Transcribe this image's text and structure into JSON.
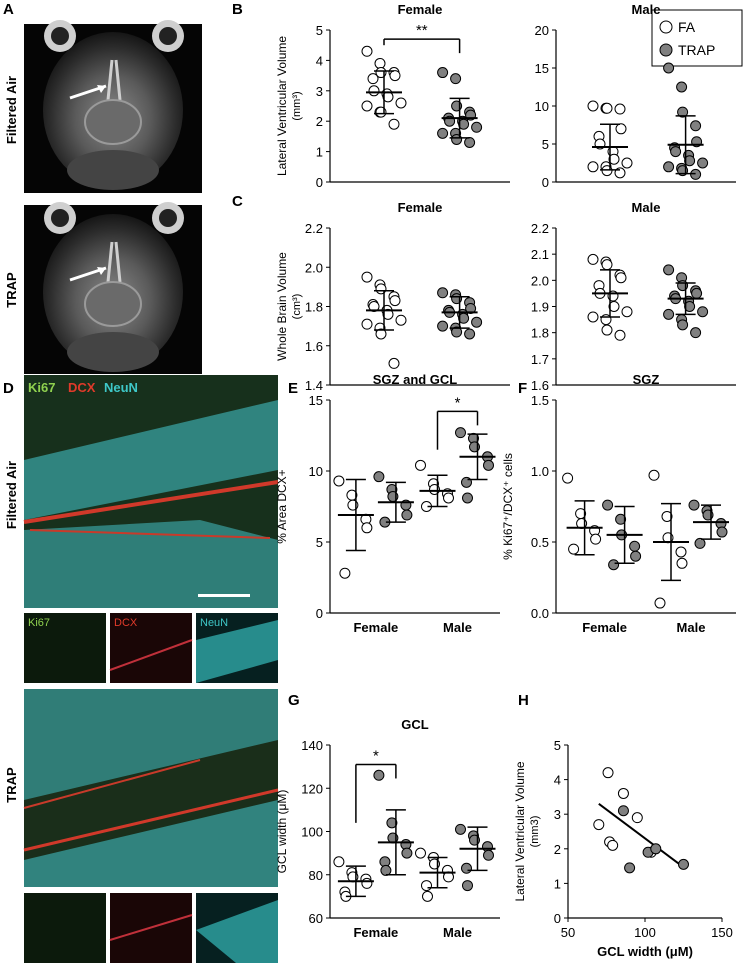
{
  "panels": {
    "A": {
      "letter": "A",
      "row_labels": [
        "Filtered Air",
        "TRAP"
      ]
    },
    "D": {
      "letter": "D",
      "row_labels": [
        "Filtered Air",
        "TRAP"
      ],
      "legend": [
        {
          "text": "Ki67",
          "color": "#8fd14f"
        },
        {
          "text": "DCX",
          "color": "#e03a2a"
        },
        {
          "text": "NeuN",
          "color": "#3ec7c7"
        }
      ],
      "sub_fa": [
        "Ki67",
        "DCX",
        "NeuN"
      ]
    }
  },
  "legend": {
    "items": [
      {
        "label": "FA",
        "fill": "#ffffff"
      },
      {
        "label": "TRAP",
        "fill": "#808080"
      }
    ]
  },
  "chart_data": [
    {
      "id": "B1",
      "panel": "B",
      "type": "scatter",
      "title": "Female",
      "ylabel": "Lateral Ventricular Volume",
      "yunit": "(mm³)",
      "ylim": [
        0,
        5
      ],
      "yticks": [
        "0",
        "1",
        "2",
        "3",
        "4",
        "5"
      ],
      "categories": [
        "",
        ""
      ],
      "series": [
        {
          "name": "FA",
          "fill": "#ffffff",
          "values": [
            4.3,
            3.9,
            3.6,
            3.6,
            3.5,
            3.4,
            3.0,
            2.9,
            2.8,
            2.6,
            2.5,
            2.3,
            2.3,
            1.9
          ],
          "mean": 2.95,
          "sd": 0.7
        },
        {
          "name": "TRAP",
          "fill": "#808080",
          "values": [
            3.6,
            3.4,
            2.5,
            2.3,
            2.2,
            2.1,
            2.0,
            2.0,
            1.9,
            1.8,
            1.6,
            1.6,
            1.4,
            1.3
          ],
          "mean": 2.1,
          "sd": 0.65
        }
      ],
      "sig": {
        "label": "**",
        "y": 4.7
      }
    },
    {
      "id": "B2",
      "panel": "B",
      "type": "scatter",
      "title": "Male",
      "ylabel": "",
      "yunit": "",
      "ylim": [
        0,
        20
      ],
      "yticks": [
        "0",
        "5",
        "10",
        "15",
        "20"
      ],
      "categories": [
        "",
        ""
      ],
      "series": [
        {
          "name": "FA",
          "fill": "#ffffff",
          "values": [
            10,
            9.7,
            9.7,
            9.6,
            7.0,
            6.0,
            5.0,
            4.0,
            3.0,
            2.5,
            2.0,
            2.0,
            1.5,
            1.2
          ],
          "mean": 4.6,
          "sd": 3.0
        },
        {
          "name": "TRAP",
          "fill": "#808080",
          "values": [
            15,
            12.5,
            9.2,
            7.4,
            5.3,
            4.5,
            4.0,
            3.5,
            2.8,
            2.5,
            2.0,
            1.8,
            1.5,
            1.0
          ],
          "mean": 4.9,
          "sd": 3.8
        }
      ]
    },
    {
      "id": "C1",
      "panel": "C",
      "type": "scatter",
      "title": "Female",
      "ylabel": "Whole Brain Volume",
      "yunit": "(cm³)",
      "ylim": [
        1.4,
        2.2
      ],
      "yticks": [
        "1.4",
        "1.6",
        "1.8",
        "2.0",
        "2.2"
      ],
      "categories": [
        "",
        ""
      ],
      "series": [
        {
          "name": "FA",
          "fill": "#ffffff",
          "values": [
            1.95,
            1.91,
            1.89,
            1.85,
            1.83,
            1.81,
            1.8,
            1.78,
            1.76,
            1.73,
            1.71,
            1.69,
            1.66,
            1.51
          ],
          "mean": 1.78,
          "sd": 0.1
        },
        {
          "name": "TRAP",
          "fill": "#808080",
          "values": [
            1.87,
            1.86,
            1.84,
            1.82,
            1.79,
            1.78,
            1.77,
            1.76,
            1.74,
            1.72,
            1.7,
            1.69,
            1.67,
            1.66
          ],
          "mean": 1.77,
          "sd": 0.08
        }
      ]
    },
    {
      "id": "C2",
      "panel": "C",
      "type": "scatter",
      "title": "Male",
      "ylabel": "",
      "yunit": "",
      "ylim": [
        1.6,
        2.2
      ],
      "yticks": [
        "1.6",
        "1.7",
        "1.8",
        "1.9",
        "2.0",
        "2.1",
        "2.2"
      ],
      "categories": [
        "",
        ""
      ],
      "series": [
        {
          "name": "FA",
          "fill": "#ffffff",
          "values": [
            2.08,
            2.07,
            2.06,
            2.02,
            2.01,
            1.98,
            1.95,
            1.94,
            1.9,
            1.88,
            1.86,
            1.85,
            1.81,
            1.79
          ],
          "mean": 1.95,
          "sd": 0.09
        },
        {
          "name": "TRAP",
          "fill": "#808080",
          "values": [
            2.04,
            2.01,
            1.98,
            1.96,
            1.95,
            1.94,
            1.93,
            1.92,
            1.9,
            1.88,
            1.87,
            1.85,
            1.83,
            1.8
          ],
          "mean": 1.93,
          "sd": 0.06
        }
      ]
    },
    {
      "id": "E",
      "panel": "E",
      "type": "scatter",
      "title": "SGZ and GCL",
      "ylabel": "% Area DCX+",
      "yunit": "",
      "ylim": [
        0,
        15
      ],
      "yticks": [
        "0",
        "5",
        "10",
        "15"
      ],
      "categories": [
        "Female",
        "Male"
      ],
      "groups": [
        {
          "series": [
            {
              "fill": "#ffffff",
              "values": [
                9.3,
                8.3,
                7.6,
                6.6,
                6.0,
                2.8
              ],
              "mean": 6.9,
              "sd": 2.5
            },
            {
              "fill": "#808080",
              "values": [
                9.6,
                8.7,
                8.2,
                7.6,
                6.9,
                6.4
              ],
              "mean": 7.8,
              "sd": 1.4
            }
          ]
        },
        {
          "series": [
            {
              "fill": "#ffffff",
              "values": [
                10.4,
                9.1,
                8.7,
                8.4,
                8.1,
                7.5
              ],
              "mean": 8.6,
              "sd": 1.1
            },
            {
              "fill": "#808080",
              "values": [
                12.7,
                12.3,
                11.7,
                11.0,
                10.4,
                9.2,
                8.1
              ],
              "mean": 11.0,
              "sd": 1.6
            }
          ]
        }
      ],
      "sig": {
        "label": "*",
        "y": 14.2
      }
    },
    {
      "id": "F",
      "panel": "F",
      "type": "scatter",
      "title": "SGZ",
      "ylabel": "% Ki67⁺/DCX⁺ cells",
      "yunit": "",
      "ylim": [
        0,
        1.5
      ],
      "yticks": [
        "0.0",
        "0.5",
        "1.0",
        "1.5"
      ],
      "categories": [
        "Female",
        "Male"
      ],
      "groups": [
        {
          "series": [
            {
              "fill": "#ffffff",
              "values": [
                0.95,
                0.7,
                0.63,
                0.58,
                0.52,
                0.45
              ],
              "mean": 0.6,
              "sd": 0.19
            },
            {
              "fill": "#808080",
              "values": [
                0.76,
                0.66,
                0.55,
                0.47,
                0.4,
                0.34
              ],
              "mean": 0.55,
              "sd": 0.2
            }
          ]
        },
        {
          "series": [
            {
              "fill": "#ffffff",
              "values": [
                0.97,
                0.68,
                0.53,
                0.43,
                0.35,
                0.07
              ],
              "mean": 0.5,
              "sd": 0.27
            },
            {
              "fill": "#808080",
              "values": [
                0.76,
                0.72,
                0.69,
                0.63,
                0.57,
                0.49
              ],
              "mean": 0.64,
              "sd": 0.12
            }
          ]
        }
      ]
    },
    {
      "id": "G",
      "panel": "G",
      "type": "scatter",
      "title": "GCL",
      "ylabel": "GCL width (μM)",
      "yunit": "",
      "ylim": [
        60,
        140
      ],
      "yticks": [
        "60",
        "80",
        "100",
        "120",
        "140"
      ],
      "categories": [
        "Female",
        "Male"
      ],
      "groups": [
        {
          "series": [
            {
              "fill": "#ffffff",
              "values": [
                86,
                81,
                79,
                78,
                76,
                72,
                70
              ],
              "mean": 77,
              "sd": 7
            },
            {
              "fill": "#808080",
              "values": [
                126,
                104,
                97,
                94,
                90,
                86,
                82
              ],
              "mean": 95,
              "sd": 15
            }
          ]
        },
        {
          "series": [
            {
              "fill": "#ffffff",
              "values": [
                90,
                88,
                85,
                82,
                79,
                75,
                70
              ],
              "mean": 81,
              "sd": 7
            },
            {
              "fill": "#808080",
              "values": [
                101,
                98,
                96,
                93,
                89,
                83,
                75
              ],
              "mean": 92,
              "sd": 10
            }
          ]
        }
      ],
      "sig": {
        "label": "*",
        "y": 131
      }
    },
    {
      "id": "H",
      "panel": "H",
      "type": "scatter",
      "title": "",
      "xlabel": "GCL width (μM)",
      "ylabel": "Lateral Ventricular Volume",
      "yunit": "(mm3)",
      "xlim": [
        50,
        150
      ],
      "ylim": [
        0,
        5
      ],
      "xticks": [
        "50",
        "100",
        "150"
      ],
      "yticks": [
        "0",
        "1",
        "2",
        "3",
        "4",
        "5"
      ],
      "points": [
        {
          "x": 76,
          "y": 4.2,
          "fill": "#ffffff"
        },
        {
          "x": 86,
          "y": 3.6,
          "fill": "#ffffff"
        },
        {
          "x": 70,
          "y": 2.7,
          "fill": "#ffffff"
        },
        {
          "x": 95,
          "y": 2.9,
          "fill": "#ffffff"
        },
        {
          "x": 77,
          "y": 2.2,
          "fill": "#ffffff"
        },
        {
          "x": 79,
          "y": 2.1,
          "fill": "#ffffff"
        },
        {
          "x": 104,
          "y": 1.9,
          "fill": "#ffffff"
        },
        {
          "x": 86,
          "y": 3.1,
          "fill": "#808080"
        },
        {
          "x": 102,
          "y": 1.9,
          "fill": "#808080"
        },
        {
          "x": 107,
          "y": 2.0,
          "fill": "#808080"
        },
        {
          "x": 125,
          "y": 1.55,
          "fill": "#808080"
        },
        {
          "x": 90,
          "y": 1.45,
          "fill": "#808080"
        }
      ],
      "trend": {
        "x1": 70,
        "y1": 3.3,
        "x2": 124,
        "y2": 1.5
      }
    }
  ]
}
